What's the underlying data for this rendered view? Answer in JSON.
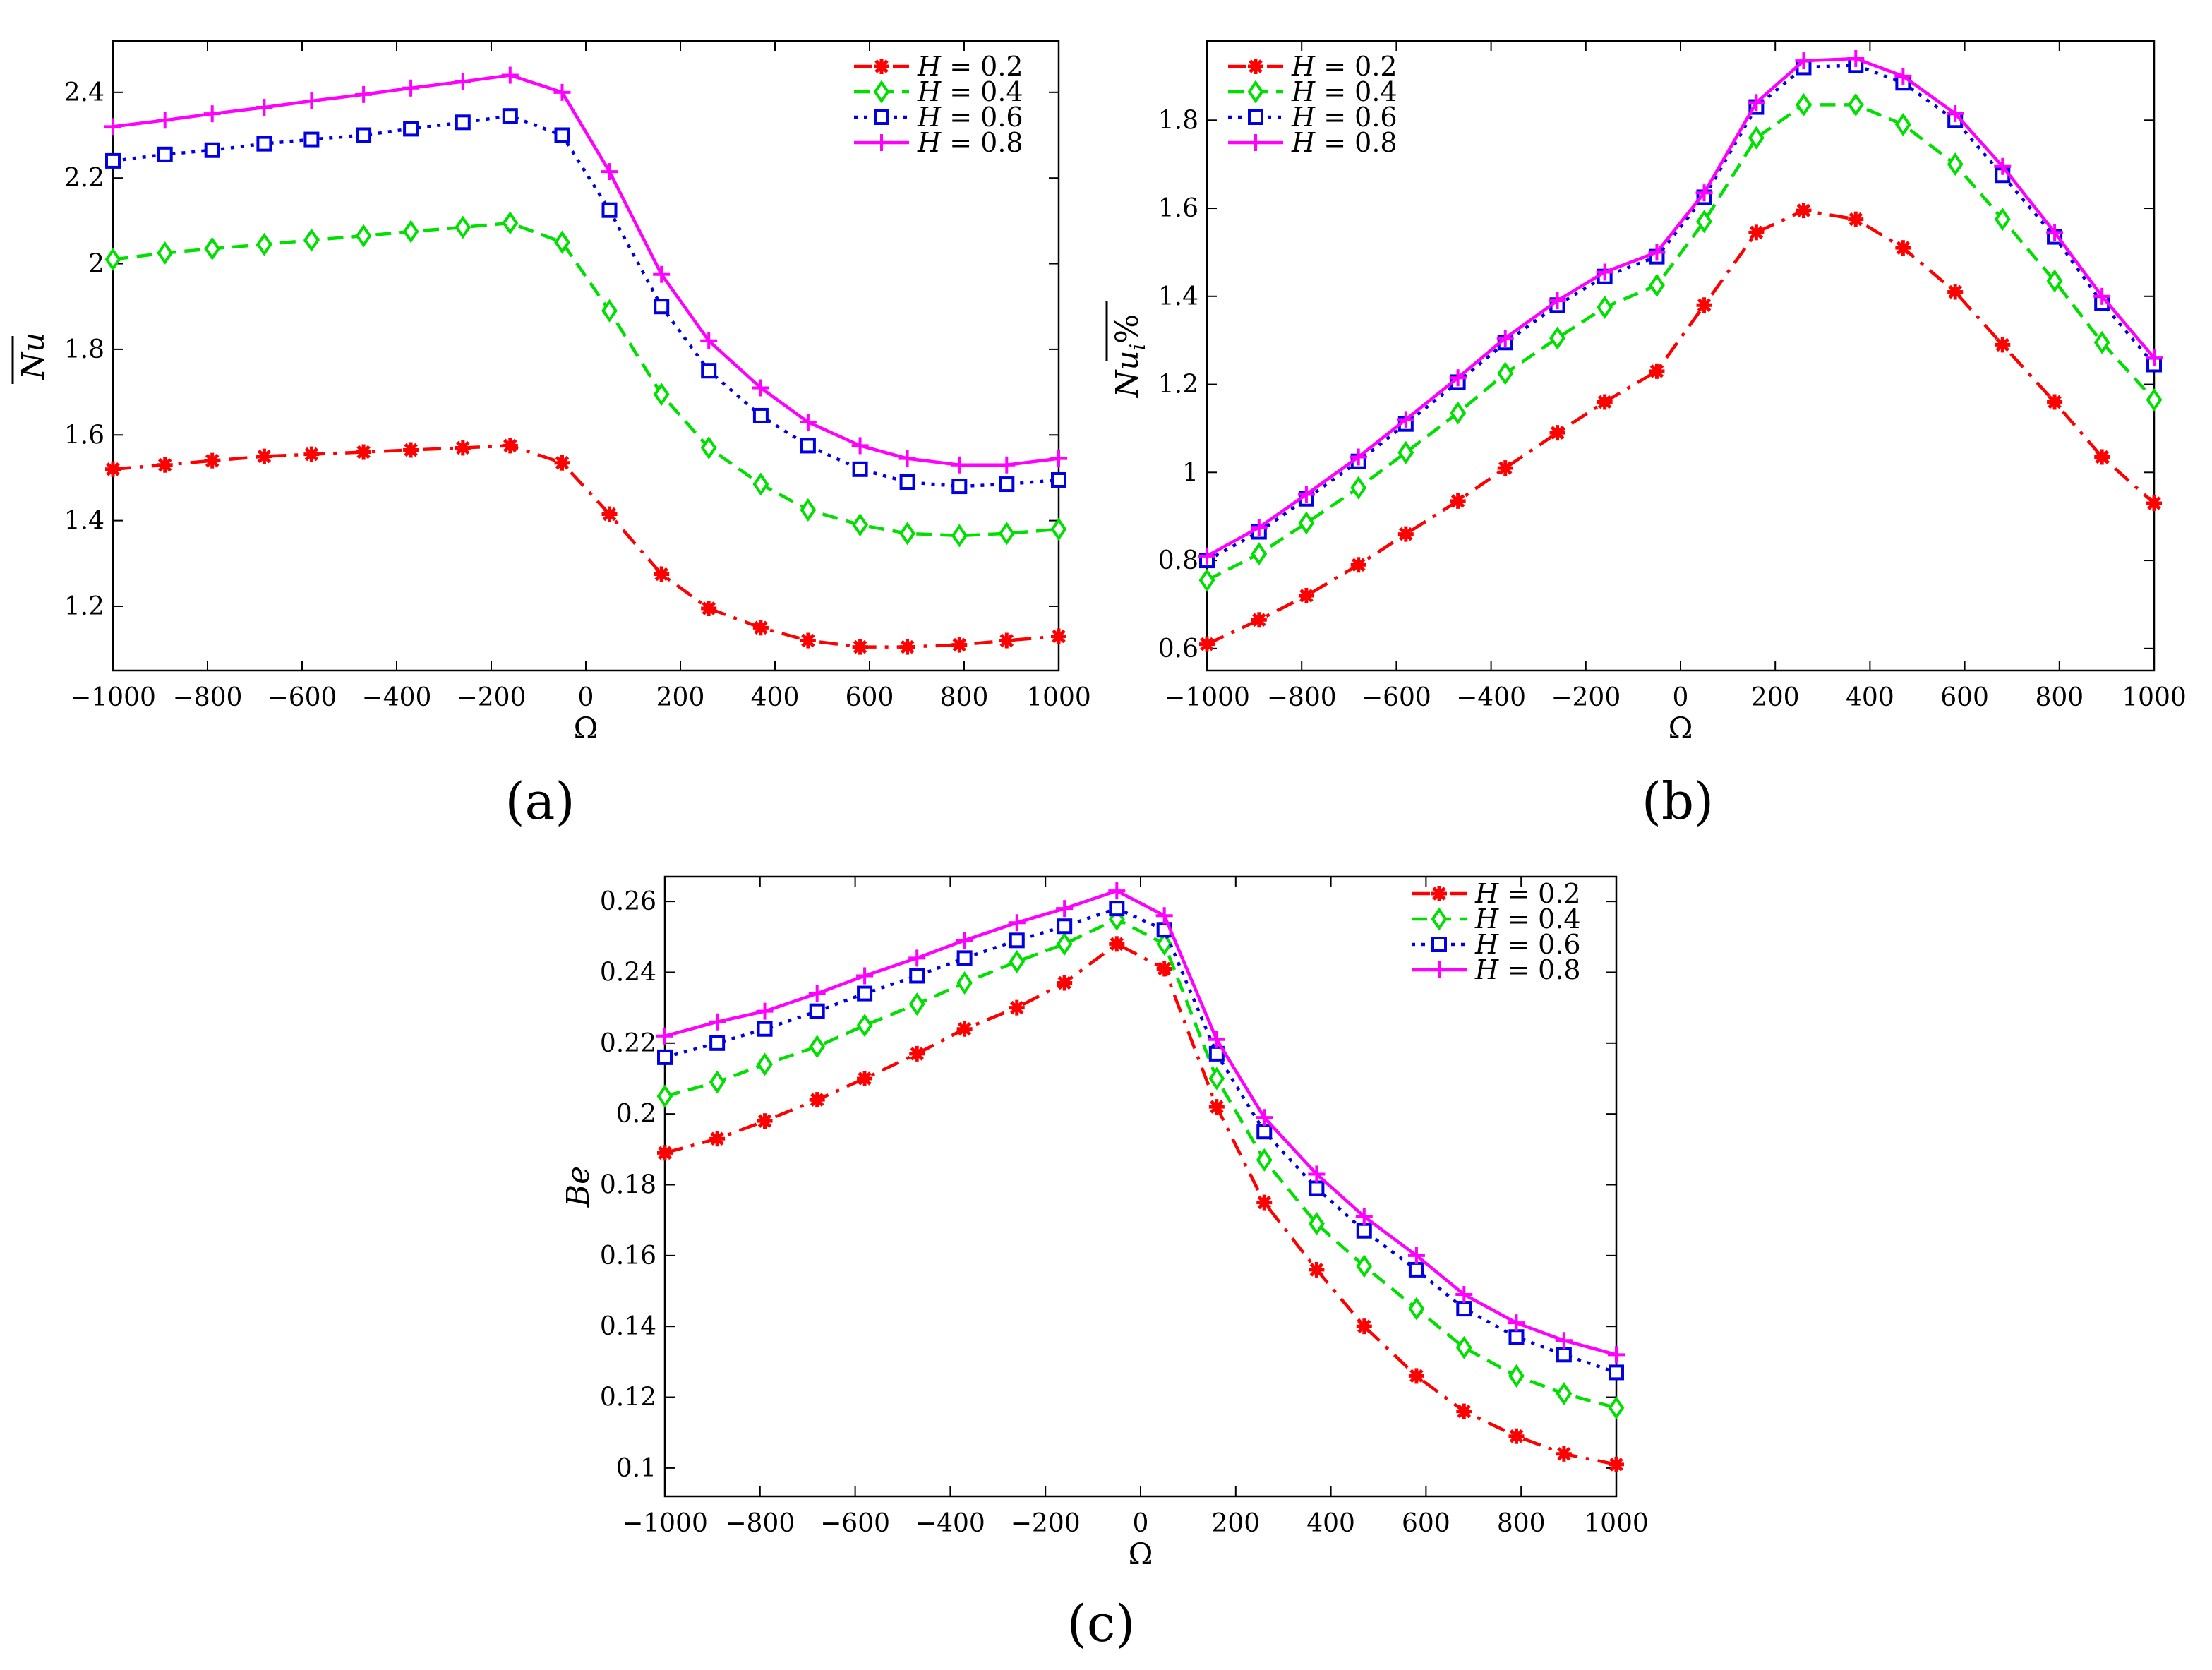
{
  "figure": {
    "panels": [
      {
        "id": "a",
        "caption": "(a)",
        "ylabel": "Nu"
      },
      {
        "id": "b",
        "caption": "(b)",
        "ylabel": "Nu_i%"
      },
      {
        "id": "c",
        "caption": "(c)",
        "ylabel": "Be"
      }
    ]
  },
  "chart_data": [
    {
      "type": "line",
      "panel": "a",
      "title": "",
      "xlabel": "Ω",
      "ylabel": "Nu (overline)",
      "xlim": [
        -1000,
        1000
      ],
      "ylim": [
        1.05,
        2.52
      ],
      "xticks": [
        -1000,
        -800,
        -600,
        -400,
        -200,
        0,
        200,
        400,
        600,
        800,
        1000
      ],
      "xtick_labels": [
        "−1000",
        "−800",
        "−600",
        "−400",
        "−200",
        "0",
        "200",
        "400",
        "600",
        "800",
        "1000"
      ],
      "yticks": [
        1.2,
        1.4,
        1.6,
        1.8,
        2.0,
        2.2,
        2.4
      ],
      "ytick_labels": [
        "1.2",
        "1.4",
        "1.6",
        "1.8",
        "2",
        "2.2",
        "2.4"
      ],
      "grid": false,
      "legend_position": "top-right",
      "x": [
        -1000,
        -890,
        -790,
        -680,
        -580,
        -470,
        -370,
        -260,
        -160,
        -50,
        50,
        160,
        260,
        370,
        470,
        580,
        680,
        790,
        890,
        1000
      ],
      "series": [
        {
          "name": "H = 0.2",
          "color": "#ff0000",
          "dash": "dashdot",
          "marker": "star",
          "values": [
            1.52,
            1.53,
            1.54,
            1.55,
            1.555,
            1.56,
            1.565,
            1.57,
            1.575,
            1.535,
            1.415,
            1.275,
            1.195,
            1.15,
            1.12,
            1.105,
            1.105,
            1.11,
            1.12,
            1.13
          ]
        },
        {
          "name": "H = 0.4",
          "color": "#00e000",
          "dash": "dashed",
          "marker": "diamond",
          "values": [
            2.01,
            2.025,
            2.035,
            2.045,
            2.055,
            2.065,
            2.075,
            2.085,
            2.095,
            2.05,
            1.89,
            1.695,
            1.57,
            1.485,
            1.425,
            1.39,
            1.37,
            1.365,
            1.37,
            1.38
          ]
        },
        {
          "name": "H = 0.6",
          "color": "#0000e0",
          "dash": "dotted",
          "marker": "square",
          "values": [
            2.24,
            2.255,
            2.265,
            2.28,
            2.29,
            2.3,
            2.315,
            2.33,
            2.345,
            2.3,
            2.125,
            1.9,
            1.75,
            1.645,
            1.575,
            1.52,
            1.49,
            1.48,
            1.485,
            1.495
          ]
        },
        {
          "name": "H = 0.8",
          "color": "#ff00ff",
          "dash": "solid",
          "marker": "plus",
          "values": [
            2.32,
            2.335,
            2.35,
            2.365,
            2.38,
            2.395,
            2.41,
            2.425,
            2.44,
            2.4,
            2.215,
            1.975,
            1.82,
            1.71,
            1.63,
            1.575,
            1.545,
            1.53,
            1.53,
            1.545
          ]
        }
      ]
    },
    {
      "type": "line",
      "panel": "b",
      "title": "",
      "xlabel": "Ω",
      "ylabel": "Nu_i %",
      "xlim": [
        -1000,
        1000
      ],
      "ylim": [
        0.55,
        1.98
      ],
      "xticks": [
        -1000,
        -800,
        -600,
        -400,
        -200,
        0,
        200,
        400,
        600,
        800,
        1000
      ],
      "xtick_labels": [
        "−1000",
        "−800",
        "−600",
        "−400",
        "−200",
        "0",
        "200",
        "400",
        "600",
        "800",
        "1000"
      ],
      "yticks": [
        0.6,
        0.8,
        1.0,
        1.2,
        1.4,
        1.6,
        1.8
      ],
      "ytick_labels": [
        "0.6",
        "0.8",
        "1",
        "1.2",
        "1.4",
        "1.6",
        "1.8"
      ],
      "grid": false,
      "legend_position": "top-left",
      "x": [
        -1000,
        -890,
        -790,
        -680,
        -580,
        -470,
        -370,
        -260,
        -160,
        -50,
        50,
        160,
        260,
        370,
        470,
        580,
        680,
        790,
        890,
        1000
      ],
      "series": [
        {
          "name": "H = 0.2",
          "color": "#ff0000",
          "dash": "dashdot",
          "marker": "star",
          "values": [
            0.61,
            0.665,
            0.72,
            0.79,
            0.86,
            0.935,
            1.01,
            1.09,
            1.16,
            1.23,
            1.38,
            1.545,
            1.595,
            1.575,
            1.51,
            1.41,
            1.29,
            1.16,
            1.035,
            0.93
          ]
        },
        {
          "name": "H = 0.4",
          "color": "#00e000",
          "dash": "dashed",
          "marker": "diamond",
          "values": [
            0.755,
            0.815,
            0.885,
            0.965,
            1.045,
            1.135,
            1.225,
            1.305,
            1.375,
            1.425,
            1.57,
            1.76,
            1.835,
            1.835,
            1.79,
            1.7,
            1.575,
            1.435,
            1.295,
            1.165
          ]
        },
        {
          "name": "H = 0.6",
          "color": "#0000e0",
          "dash": "dotted",
          "marker": "square",
          "values": [
            0.8,
            0.865,
            0.94,
            1.025,
            1.11,
            1.205,
            1.295,
            1.38,
            1.445,
            1.49,
            1.625,
            1.83,
            1.92,
            1.925,
            1.885,
            1.8,
            1.675,
            1.535,
            1.385,
            1.245
          ]
        },
        {
          "name": "H = 0.8",
          "color": "#ff00ff",
          "dash": "solid",
          "marker": "plus",
          "values": [
            0.81,
            0.875,
            0.95,
            1.035,
            1.12,
            1.215,
            1.305,
            1.39,
            1.455,
            1.5,
            1.635,
            1.84,
            1.935,
            1.94,
            1.9,
            1.815,
            1.695,
            1.545,
            1.4,
            1.26
          ]
        }
      ]
    },
    {
      "type": "line",
      "panel": "c",
      "title": "",
      "xlabel": "Ω",
      "ylabel": "Be",
      "xlim": [
        -1000,
        1000
      ],
      "ylim": [
        0.092,
        0.267
      ],
      "xticks": [
        -1000,
        -800,
        -600,
        -400,
        -200,
        0,
        200,
        400,
        600,
        800,
        1000
      ],
      "xtick_labels": [
        "−1000",
        "−800",
        "−600",
        "−400",
        "−200",
        "0",
        "200",
        "400",
        "600",
        "800",
        "1000"
      ],
      "yticks": [
        0.1,
        0.12,
        0.14,
        0.16,
        0.18,
        0.2,
        0.22,
        0.24,
        0.26
      ],
      "ytick_labels": [
        "0.1",
        "0.12",
        "0.14",
        "0.16",
        "0.18",
        "0.2",
        "0.22",
        "0.24",
        "0.26"
      ],
      "grid": false,
      "legend_position": "top-right",
      "x": [
        -1000,
        -890,
        -790,
        -680,
        -580,
        -470,
        -370,
        -260,
        -160,
        -50,
        50,
        160,
        260,
        370,
        470,
        580,
        680,
        790,
        890,
        1000
      ],
      "series": [
        {
          "name": "H = 0.2",
          "color": "#ff0000",
          "dash": "dashdot",
          "marker": "star",
          "values": [
            0.189,
            0.193,
            0.198,
            0.204,
            0.21,
            0.217,
            0.224,
            0.23,
            0.237,
            0.248,
            0.241,
            0.202,
            0.175,
            0.156,
            0.14,
            0.126,
            0.116,
            0.109,
            0.104,
            0.101
          ]
        },
        {
          "name": "H = 0.4",
          "color": "#00e000",
          "dash": "dashed",
          "marker": "diamond",
          "values": [
            0.205,
            0.209,
            0.214,
            0.219,
            0.225,
            0.231,
            0.237,
            0.243,
            0.248,
            0.255,
            0.248,
            0.21,
            0.187,
            0.169,
            0.157,
            0.145,
            0.134,
            0.126,
            0.121,
            0.117
          ]
        },
        {
          "name": "H = 0.6",
          "color": "#0000e0",
          "dash": "dotted",
          "marker": "square",
          "values": [
            0.216,
            0.22,
            0.224,
            0.229,
            0.234,
            0.239,
            0.244,
            0.249,
            0.253,
            0.258,
            0.252,
            0.217,
            0.195,
            0.179,
            0.167,
            0.156,
            0.145,
            0.137,
            0.132,
            0.127
          ]
        },
        {
          "name": "H = 0.8",
          "color": "#ff00ff",
          "dash": "solid",
          "marker": "plus",
          "values": [
            0.222,
            0.226,
            0.229,
            0.234,
            0.239,
            0.244,
            0.249,
            0.254,
            0.258,
            0.263,
            0.256,
            0.221,
            0.199,
            0.183,
            0.171,
            0.16,
            0.149,
            0.141,
            0.136,
            0.132
          ]
        }
      ]
    }
  ]
}
